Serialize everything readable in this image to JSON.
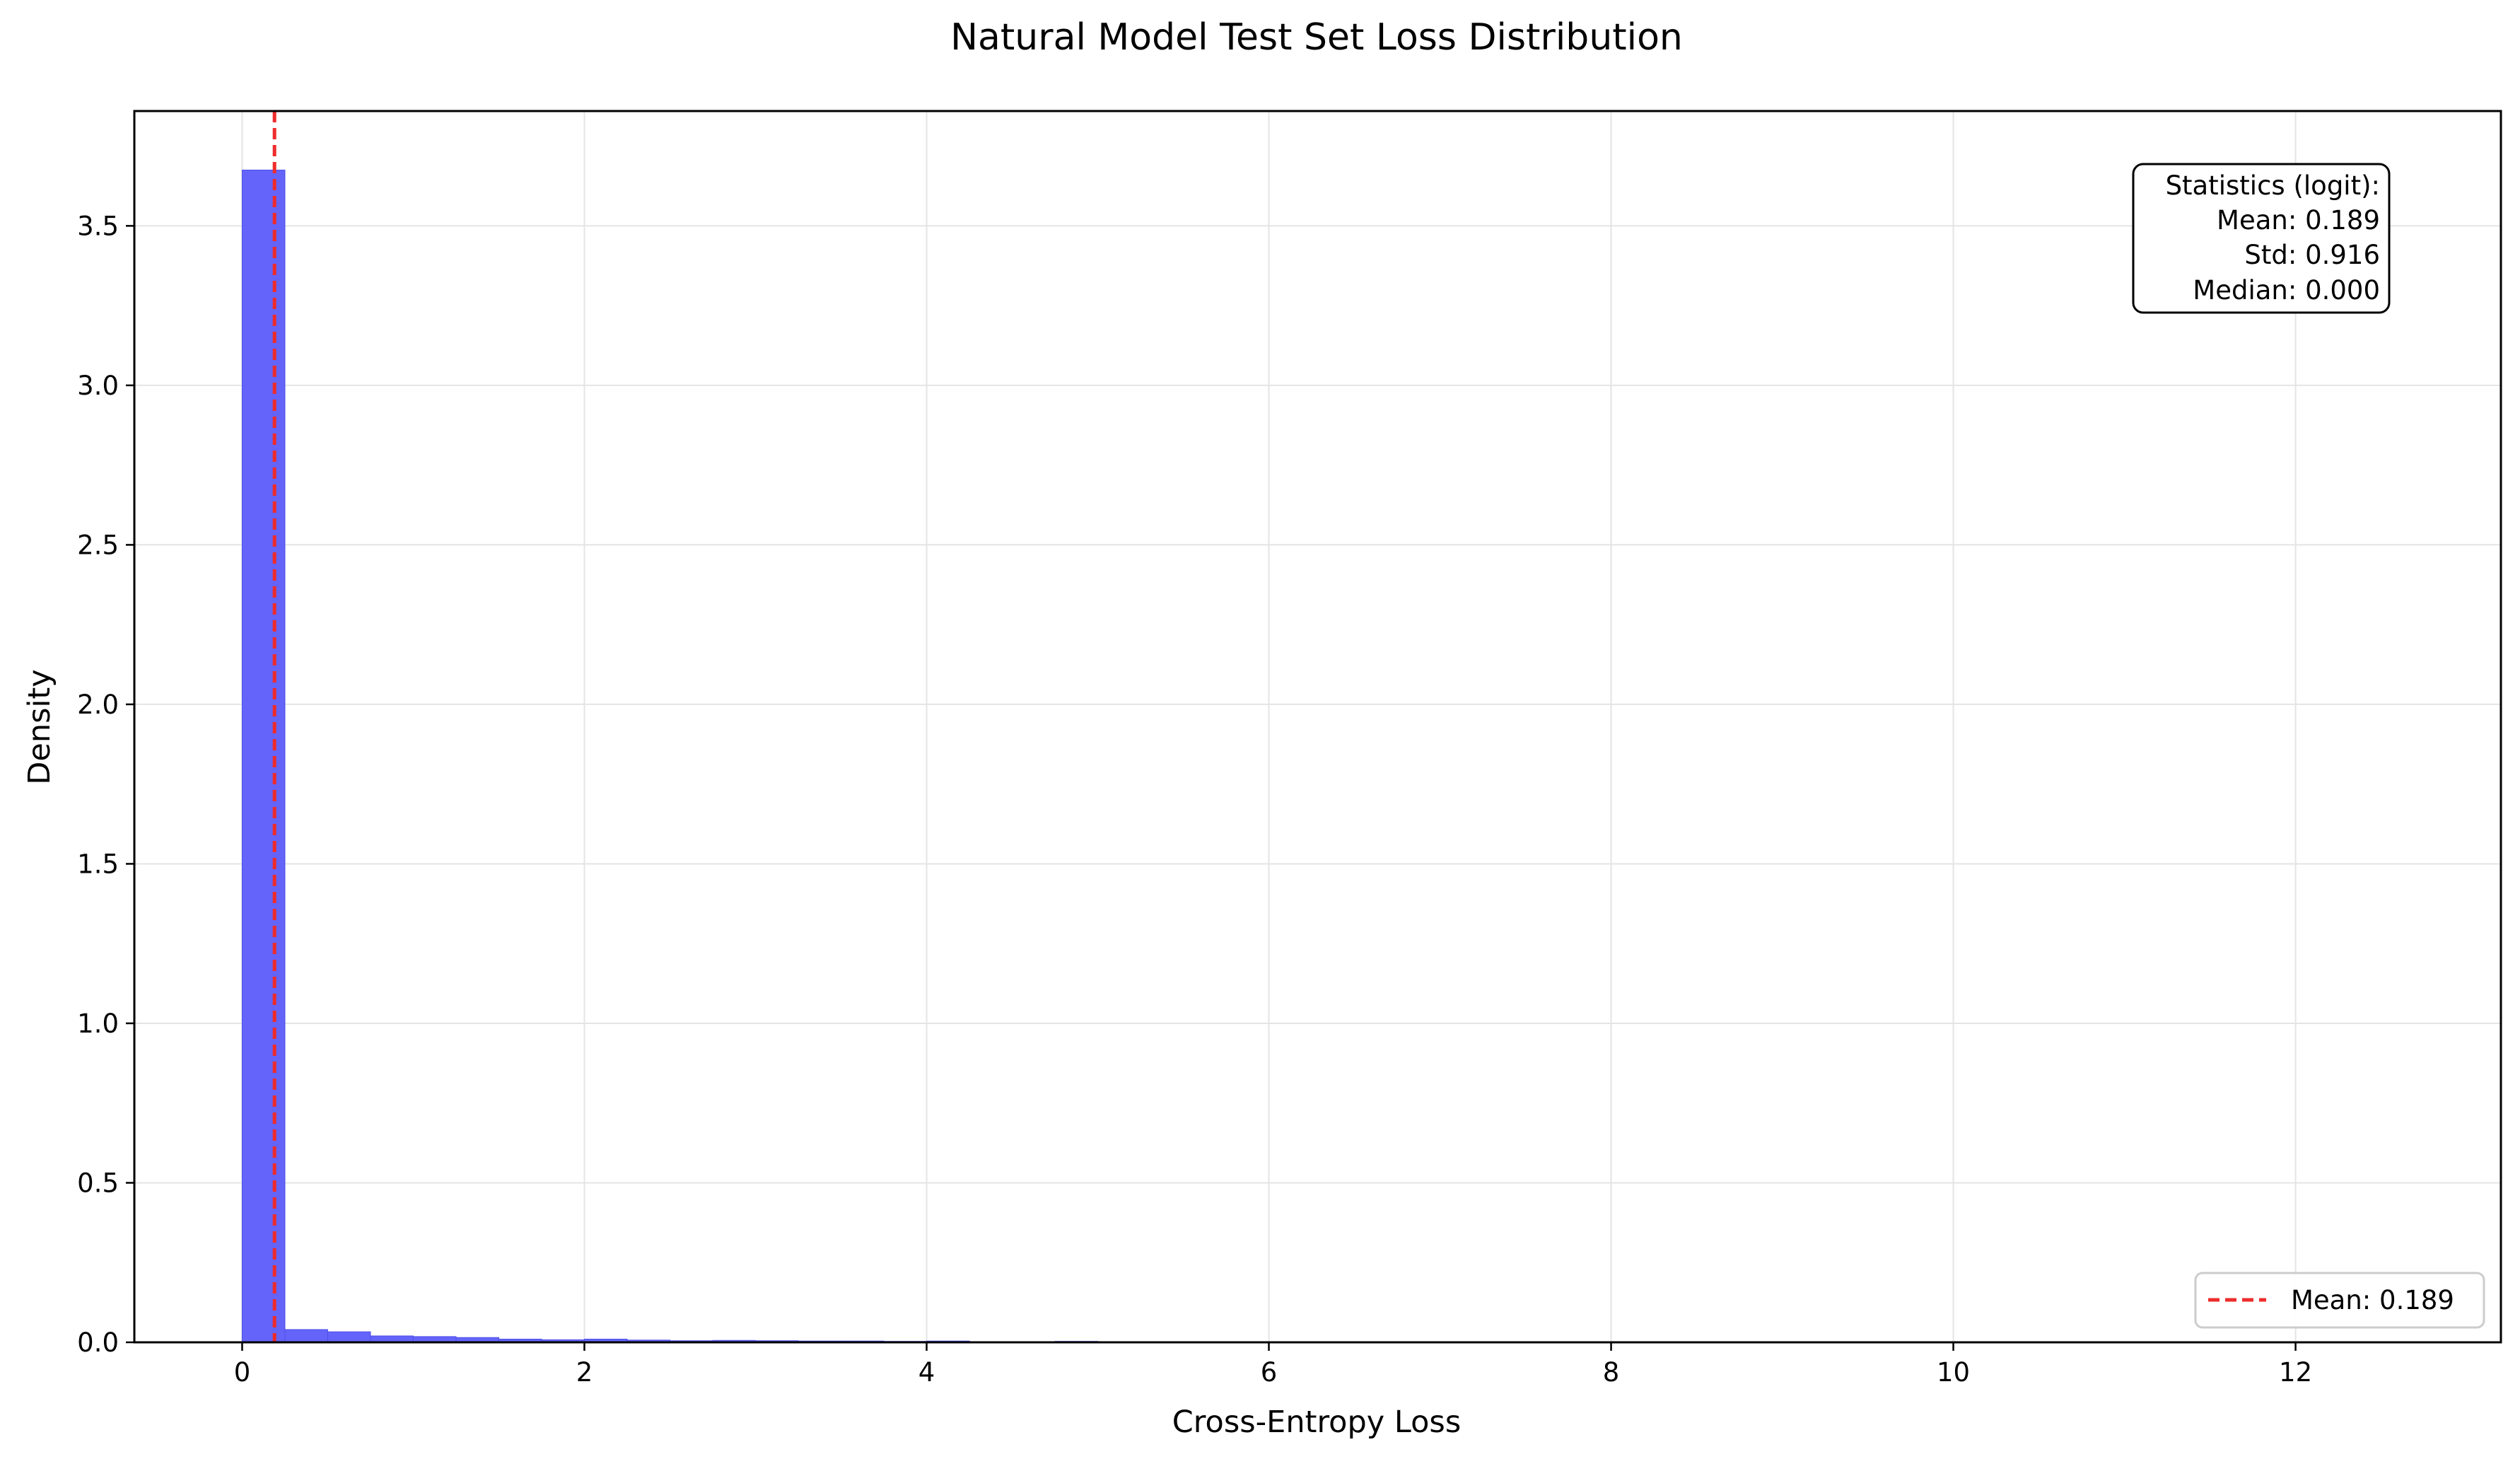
{
  "chart_data": {
    "type": "bar",
    "title": "Natural Model Test Set Loss Distribution",
    "xlabel": "Cross-Entropy Loss",
    "ylabel": "Density",
    "xlim": [
      -0.63,
      13.2
    ],
    "ylim": [
      0,
      3.86
    ],
    "xticks": [
      0,
      2,
      4,
      6,
      8,
      10,
      12
    ],
    "yticks": [
      0.0,
      0.5,
      1.0,
      1.5,
      2.0,
      2.5,
      3.0,
      3.5
    ],
    "grid": true,
    "bin_width": 0.25,
    "bins": [
      {
        "x0": 0.0,
        "value": 3.675
      },
      {
        "x0": 0.25,
        "value": 0.04
      },
      {
        "x0": 0.5,
        "value": 0.033
      },
      {
        "x0": 0.75,
        "value": 0.02
      },
      {
        "x0": 1.0,
        "value": 0.018
      },
      {
        "x0": 1.25,
        "value": 0.015
      },
      {
        "x0": 1.5,
        "value": 0.01
      },
      {
        "x0": 1.75,
        "value": 0.008
      },
      {
        "x0": 2.0,
        "value": 0.01
      },
      {
        "x0": 2.25,
        "value": 0.007
      },
      {
        "x0": 2.5,
        "value": 0.005
      },
      {
        "x0": 2.75,
        "value": 0.006
      },
      {
        "x0": 3.0,
        "value": 0.005
      },
      {
        "x0": 3.25,
        "value": 0.004
      },
      {
        "x0": 3.5,
        "value": 0.004
      },
      {
        "x0": 3.75,
        "value": 0.003
      },
      {
        "x0": 4.0,
        "value": 0.004
      },
      {
        "x0": 4.25,
        "value": 0.002
      },
      {
        "x0": 4.5,
        "value": 0.002
      },
      {
        "x0": 4.75,
        "value": 0.003
      },
      {
        "x0": 5.0,
        "value": 0.002
      },
      {
        "x0": 5.25,
        "value": 0.001
      },
      {
        "x0": 5.5,
        "value": 0.001
      },
      {
        "x0": 5.75,
        "value": 0.001
      },
      {
        "x0": 6.0,
        "value": 0.001
      },
      {
        "x0": 6.25,
        "value": 0.001
      }
    ],
    "mean_line": {
      "x": 0.189,
      "label": "Mean: 0.189"
    },
    "stats_box": {
      "lines": [
        "Statistics (logit):",
        "Mean: 0.189",
        "Std: 0.916",
        "Median: 0.000"
      ]
    },
    "legend_position": "lower-right",
    "colors": {
      "bars": "#6464fa",
      "bar_edge": "#4f4fe6",
      "mean_line": "#ee2b2b",
      "grid": "#e4e4e4"
    }
  }
}
